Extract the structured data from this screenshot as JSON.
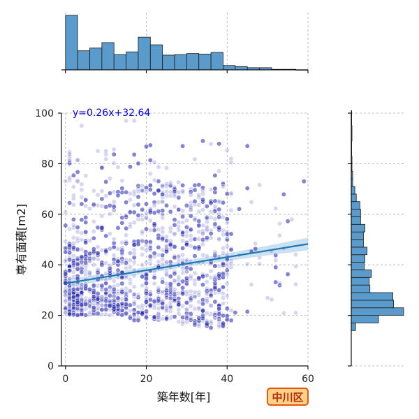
{
  "badge": "中川区",
  "chart_data": {
    "type": "scatter",
    "xlabel": "築年数[年]",
    "ylabel": "専有面積[m2]",
    "annotation": "y=0.26x+32.64",
    "xlim": [
      -1,
      60
    ],
    "ylim": [
      0,
      100
    ],
    "xticks": [
      0,
      20,
      40,
      60
    ],
    "yticks": [
      0,
      20,
      40,
      60,
      80,
      100
    ],
    "grid": true,
    "regression": {
      "slope": 0.26,
      "intercept": 32.64,
      "color": "#1f77b4",
      "ci_color": "#9ec9e6"
    },
    "point_color": "#2222aa",
    "hist_color": "#5a9bcb",
    "top_hist": {
      "bin_edges": [
        0,
        3,
        6,
        9,
        12,
        15,
        18,
        21,
        24,
        27,
        30,
        33,
        36,
        39,
        42,
        45,
        48,
        51,
        54,
        57,
        60
      ],
      "counts": [
        100,
        35,
        40,
        50,
        28,
        33,
        60,
        46,
        27,
        28,
        30,
        29,
        32,
        8,
        6,
        4,
        4,
        1,
        1,
        0
      ]
    },
    "right_hist": {
      "bin_edges": [
        14,
        17,
        20,
        23,
        26,
        29,
        32,
        35,
        38,
        41,
        44,
        47,
        50,
        53,
        56,
        59,
        62,
        65,
        68,
        71,
        74,
        77,
        80,
        83,
        86,
        89,
        92,
        95,
        98,
        101
      ],
      "counts": [
        6,
        38,
        73,
        59,
        58,
        26,
        25,
        28,
        18,
        19,
        22,
        17,
        17,
        19,
        13,
        13,
        12,
        7,
        5,
        2,
        2,
        1,
        1,
        0,
        0,
        1,
        1,
        0,
        0
      ]
    },
    "clusters": [
      {
        "x": [
          0,
          3
        ],
        "y": [
          20,
          30
        ],
        "n": 110
      },
      {
        "x": [
          0,
          3
        ],
        "y": [
          30,
          50
        ],
        "n": 70
      },
      {
        "x": [
          0,
          3
        ],
        "y": [
          50,
          85
        ],
        "n": 28
      },
      {
        "x": [
          3,
          16
        ],
        "y": [
          20,
          30
        ],
        "n": 170
      },
      {
        "x": [
          3,
          16
        ],
        "y": [
          30,
          46
        ],
        "n": 140
      },
      {
        "x": [
          3,
          16
        ],
        "y": [
          46,
          70
        ],
        "n": 80
      },
      {
        "x": [
          3,
          16
        ],
        "y": [
          70,
          86
        ],
        "n": 16
      },
      {
        "x": [
          16,
          28
        ],
        "y": [
          18,
          30
        ],
        "n": 120
      },
      {
        "x": [
          16,
          28
        ],
        "y": [
          30,
          50
        ],
        "n": 110
      },
      {
        "x": [
          16,
          28
        ],
        "y": [
          50,
          72
        ],
        "n": 100
      },
      {
        "x": [
          16,
          28
        ],
        "y": [
          72,
          88
        ],
        "n": 14
      },
      {
        "x": [
          28,
          41
        ],
        "y": [
          15,
          30
        ],
        "n": 120
      },
      {
        "x": [
          28,
          41
        ],
        "y": [
          30,
          50
        ],
        "n": 110
      },
      {
        "x": [
          28,
          41
        ],
        "y": [
          50,
          72
        ],
        "n": 110
      },
      {
        "x": [
          28,
          41
        ],
        "y": [
          72,
          88
        ],
        "n": 10
      },
      {
        "x": [
          41,
          58
        ],
        "y": [
          20,
          60
        ],
        "n": 30
      },
      {
        "x": [
          41,
          58
        ],
        "y": [
          60,
          88
        ],
        "n": 6
      }
    ],
    "outliers": [
      {
        "x": 4,
        "y": 95
      },
      {
        "x": 15,
        "y": 97
      },
      {
        "x": 17,
        "y": 97
      },
      {
        "x": 34,
        "y": 89
      },
      {
        "x": 45,
        "y": 87
      },
      {
        "x": 59,
        "y": 73
      },
      {
        "x": 41,
        "y": 82
      },
      {
        "x": 57,
        "y": 21
      },
      {
        "x": 52,
        "y": 39
      }
    ]
  }
}
